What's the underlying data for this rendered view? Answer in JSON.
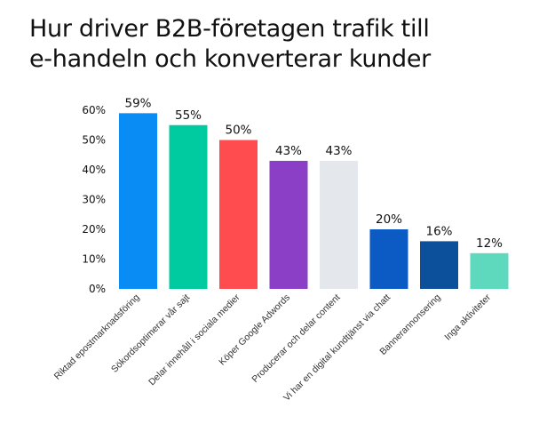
{
  "title_lines": [
    "Hur driver B2B-företagen trafik till",
    "e-handeln och konverterar kunder"
  ],
  "chart_data": {
    "type": "bar",
    "title": "Hur driver B2B-företagen trafik till e-handeln och konverterar kunder",
    "xlabel": "",
    "ylabel": "",
    "ylim": [
      0,
      60
    ],
    "yticks": [
      0,
      10,
      20,
      30,
      40,
      50,
      60
    ],
    "ytick_labels": [
      "0%",
      "10%",
      "20%",
      "30%",
      "40%",
      "50%",
      "60%"
    ],
    "grid": false,
    "categories": [
      "Riktad epostmarknadsföring",
      "Sökordsoptimerar vår sajt",
      "Delar innehåll i sociala medier",
      "Köper Google Adwords",
      "Producerar och delar content",
      "Vi har en digital kundtjänst via chatt",
      "Bannerannonsering",
      "Inga aktiviteter"
    ],
    "values": [
      59,
      55,
      50,
      43,
      43,
      20,
      16,
      12
    ],
    "data_labels": [
      "59%",
      "55%",
      "50%",
      "43%",
      "43%",
      "20%",
      "16%",
      "12%"
    ],
    "colors": [
      "#0a8cf5",
      "#00cba0",
      "#ff4d4f",
      "#8a3fc6",
      "#e4e7ec",
      "#0c5bc4",
      "#0c4f9a",
      "#5fd9bd"
    ]
  }
}
